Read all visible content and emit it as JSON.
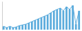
{
  "chart_data": {
    "type": "bar",
    "categories": [
      null,
      null,
      null,
      null,
      null,
      null,
      null,
      null,
      null,
      null,
      null,
      null,
      null,
      null,
      null,
      null,
      null,
      null,
      null,
      null,
      null,
      null,
      null,
      null,
      null
    ],
    "series": [
      {
        "type": "bar",
        "color": "#5aabdc",
        "values": [
          5,
          3,
          5,
          3,
          4,
          6,
          7,
          8,
          10,
          12,
          14,
          16,
          18,
          20,
          22,
          25,
          28,
          30,
          32,
          28,
          34,
          30,
          36,
          8,
          28
        ]
      },
      {
        "type": "line",
        "color": "#5aabdc",
        "values": [
          5,
          3,
          5,
          3,
          4,
          6,
          7,
          8,
          10,
          12,
          14,
          16,
          18,
          20,
          22,
          25,
          28,
          30,
          32,
          28,
          34,
          30,
          36,
          8,
          28
        ]
      }
    ],
    "ylim": [
      0,
      42
    ],
    "tick_labels": false
  }
}
